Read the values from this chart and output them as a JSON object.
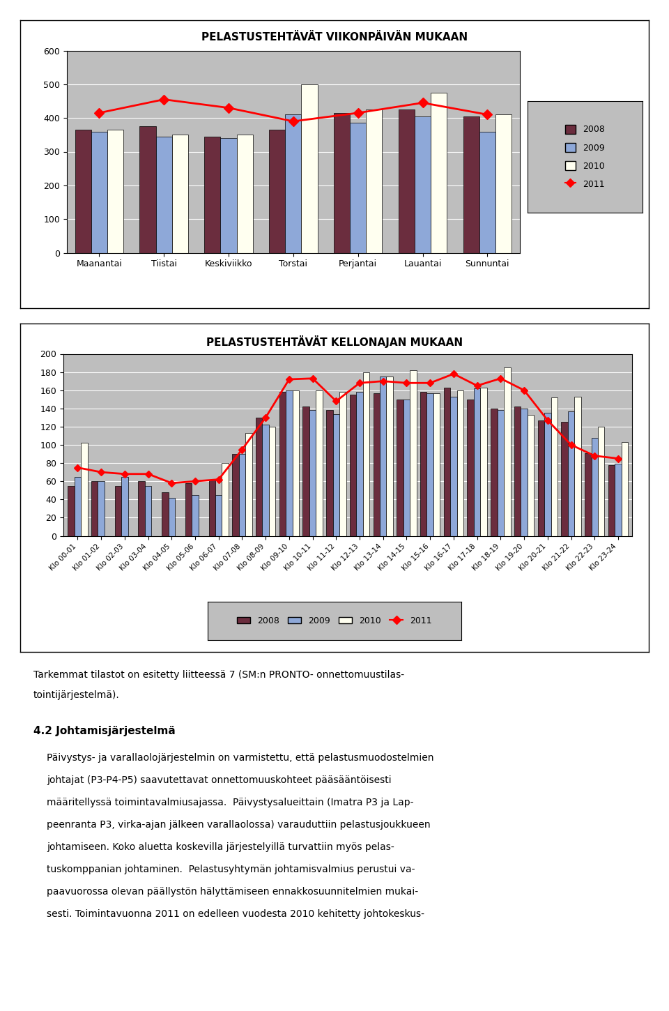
{
  "chart1": {
    "title": "PELASTUSTEHTÄVÄT VIIKONPÄIVÄN MUKAAN",
    "categories": [
      "Maanantai",
      "Tiistai",
      "Keskiviikko",
      "Torstai",
      "Perjantai",
      "Lauantai",
      "Sunnuntai"
    ],
    "bar2008": [
      365,
      375,
      345,
      365,
      415,
      425,
      405
    ],
    "bar2009": [
      360,
      345,
      340,
      410,
      385,
      405,
      360
    ],
    "bar2010": [
      365,
      350,
      350,
      500,
      425,
      475,
      410
    ],
    "line2011": [
      415,
      455,
      430,
      390,
      415,
      445,
      410
    ],
    "ylim": [
      0,
      600
    ],
    "yticks": [
      0,
      100,
      200,
      300,
      400,
      500,
      600
    ]
  },
  "chart2": {
    "title": "PELASTUSTEHTÄVÄT KELLONAJAN MUKAAN",
    "categories": [
      "Klo 00-01",
      "Klo 01-02",
      "Klo 02-03",
      "Klo 03-04",
      "Klo 04-05",
      "Klo 05-06",
      "Klo 06-07",
      "Klo 07-08",
      "Klo 08-09",
      "Klo 09-10",
      "Klo 10-11",
      "Klo 11-12",
      "Klo 12-13",
      "Klo 13-14",
      "Klo 14-15",
      "Klo 15-16",
      "Klo 16-17",
      "Klo 17-18",
      "Klo 18-19",
      "Klo 19-20",
      "Klo 20-21",
      "Klo 21-22",
      "Klo 22-23",
      "Klo 23-24"
    ],
    "bar2008": [
      55,
      60,
      55,
      60,
      48,
      58,
      62,
      90,
      130,
      158,
      142,
      138,
      155,
      157,
      150,
      158,
      163,
      150,
      140,
      142,
      127,
      125,
      91,
      78
    ],
    "bar2009": [
      65,
      60,
      65,
      55,
      42,
      45,
      45,
      90,
      122,
      160,
      138,
      134,
      158,
      175,
      150,
      157,
      153,
      162,
      138,
      140,
      135,
      137,
      108,
      79
    ],
    "bar2010": [
      102,
      0,
      0,
      0,
      0,
      0,
      80,
      113,
      120,
      160,
      160,
      158,
      180,
      175,
      182,
      157,
      160,
      163,
      185,
      133,
      152,
      153,
      120,
      103
    ],
    "line2011": [
      75,
      70,
      68,
      68,
      58,
      60,
      62,
      95,
      130,
      172,
      173,
      148,
      168,
      170,
      168,
      168,
      178,
      165,
      173,
      160,
      127,
      100,
      88,
      85
    ],
    "ylim": [
      0,
      200
    ],
    "yticks": [
      0,
      20,
      40,
      60,
      80,
      100,
      120,
      140,
      160,
      180,
      200
    ]
  },
  "colors": {
    "bar2008": "#6B2D3E",
    "bar2009": "#8EA8D8",
    "bar2010": "#FFFFF0",
    "line2011": "#FF0000",
    "plot_bg": "#BEBEBE",
    "fig_bg": "#FFFFFF",
    "frame_bg": "#FFFFFF",
    "border": "#000000"
  },
  "text_block": {
    "paragraph1_line1": "Tarkemmat tilastot on esitetty liitteessä 7 (SM:n PRONTO- onnettomuustilas-",
    "paragraph1_line2": "tointijärjestelmä).",
    "heading": "4.2 Johtamisjärjestelmä",
    "paragraph2": "Päivystys- ja varallaolojärjestelmin on varmistettu, että pelastusmuodostelmien johtajat (P3-P4-P5) saavutettavat onnettomuuskohteet pääsääntöisesti määritellyssä toimintavalmiusajassa.  Päivystysalueittain (Imatra P3 ja Lappeenranta P3, virka-ajan jälkeen varallaolossa) varauduttiin pelastusjoukkueen johtamiseen. Koko aluetta koskevilla järjestelyillä turvattiin myös pelaskomppanian johtaminen. Pelastusyhtymän johtamisvalmius perustui vapaavuorossa olevan päällystön hälyttämiseen ennakkosuunnitelmien mukaisesti. Toimintavuonna 2011 on edelleen vuodesta 2010 kehitetty johtokeskus-"
  }
}
